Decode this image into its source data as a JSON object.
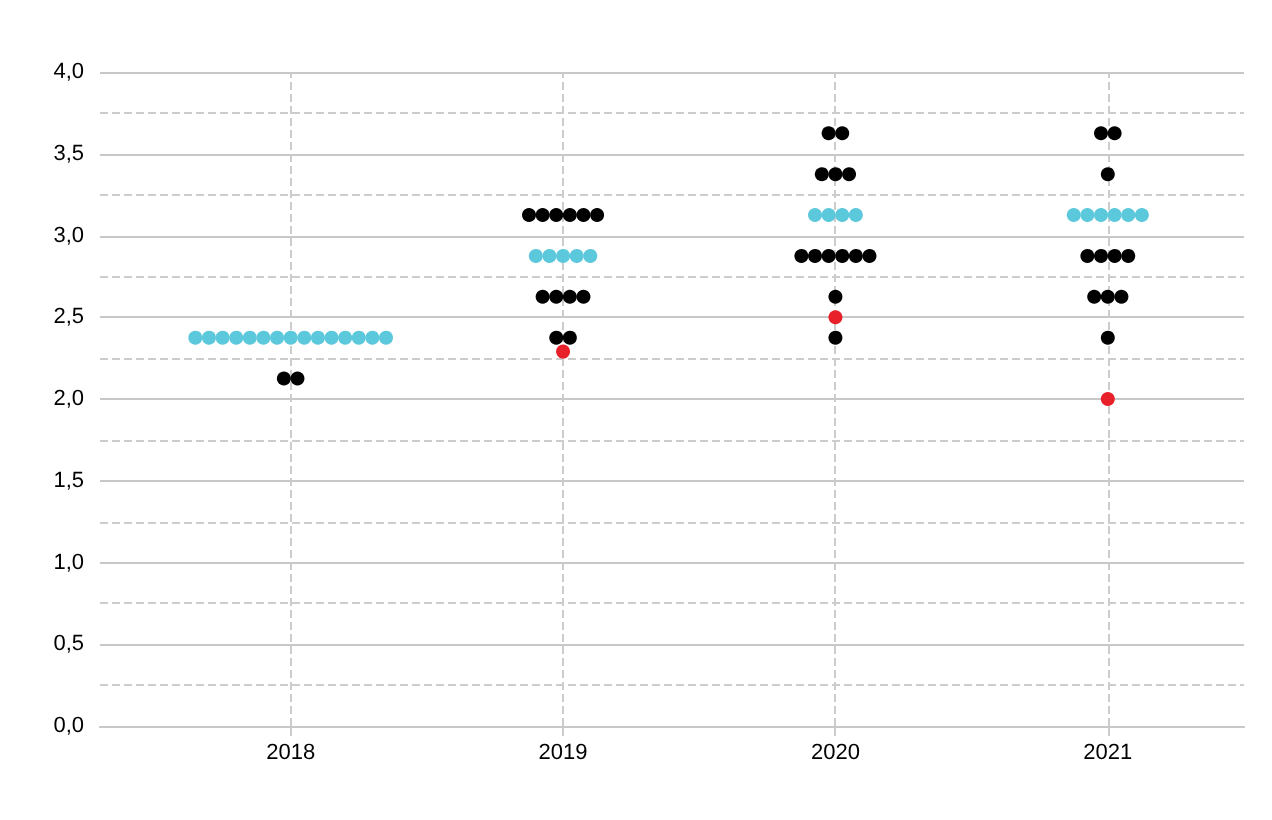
{
  "chart_data": {
    "type": "scatter",
    "series": [
      {
        "color": "#000000",
        "x": [
          2017.975,
          2018.025,
          2018.875,
          2018.925,
          2018.975,
          2019.025,
          2019.075,
          2019.125,
          2018.925,
          2018.975,
          2019.025,
          2019.075,
          2018.975,
          2019.025,
          2019.975,
          2020.025,
          2019.95,
          2020,
          2020.05,
          2019.875,
          2019.925,
          2019.975,
          2020.025,
          2020.075,
          2020.125,
          2020,
          2020,
          2020.975,
          2021.025,
          2021,
          2020.925,
          2020.975,
          2021.025,
          2021.075,
          2020.95,
          2021,
          2021.05,
          2021
        ],
        "values": [
          2.125,
          2.125,
          3.125,
          3.125,
          3.125,
          3.125,
          3.125,
          3.125,
          2.625,
          2.625,
          2.625,
          2.625,
          2.375,
          2.375,
          3.625,
          3.625,
          3.375,
          3.375,
          3.375,
          2.875,
          2.875,
          2.875,
          2.875,
          2.875,
          2.875,
          2.625,
          2.375,
          3.625,
          3.625,
          3.375,
          2.875,
          2.875,
          2.875,
          2.875,
          2.625,
          2.625,
          2.625,
          2.375
        ]
      },
      {
        "color": "#5bc8dc",
        "x": [
          2017.65,
          2017.7,
          2017.75,
          2017.8,
          2017.85,
          2017.9,
          2017.95,
          2018,
          2018.05,
          2018.1,
          2018.15,
          2018.2,
          2018.25,
          2018.3,
          2018.35,
          2018.9,
          2018.95,
          2019,
          2019.05,
          2019.1,
          2019.925,
          2019.975,
          2020.025,
          2020.075,
          2020.875,
          2020.925,
          2020.975,
          2021.025,
          2021.075,
          2021.125
        ],
        "values": [
          2.375,
          2.375,
          2.375,
          2.375,
          2.375,
          2.375,
          2.375,
          2.375,
          2.375,
          2.375,
          2.375,
          2.375,
          2.375,
          2.375,
          2.375,
          2.875,
          2.875,
          2.875,
          2.875,
          2.875,
          3.125,
          3.125,
          3.125,
          3.125,
          3.125,
          3.125,
          3.125,
          3.125,
          3.125,
          3.125
        ]
      },
      {
        "color": "#e8202a",
        "x": [
          2019,
          2020,
          2021
        ],
        "values": [
          2.29,
          2.5,
          2.0
        ]
      }
    ],
    "xlim": [
      2017.3,
      2021.5
    ],
    "xticks": [
      2018,
      2019,
      2020,
      2021
    ],
    "ylim": [
      0,
      4
    ],
    "yticks": [
      {
        "value": 0,
        "label": "0,0"
      },
      {
        "value": 0.25,
        "label": null
      },
      {
        "value": 0.5,
        "label": "0,5"
      },
      {
        "value": 0.75,
        "label": null
      },
      {
        "value": 1,
        "label": "1,0"
      },
      {
        "value": 1.25,
        "label": null
      },
      {
        "value": 1.5,
        "label": "1,5"
      },
      {
        "value": 1.75,
        "label": null
      },
      {
        "value": 2,
        "label": "2,0"
      },
      {
        "value": 2.25,
        "label": null
      },
      {
        "value": 2.5,
        "label": "2,5"
      },
      {
        "value": 2.75,
        "label": null
      },
      {
        "value": 3,
        "label": "3,0"
      },
      {
        "value": 3.25,
        "label": null
      },
      {
        "value": 3.5,
        "label": "3,5"
      },
      {
        "value": 3.75,
        "label": null
      },
      {
        "value": 4,
        "label": "4,0"
      }
    ],
    "grid": true,
    "marker": "circle"
  }
}
